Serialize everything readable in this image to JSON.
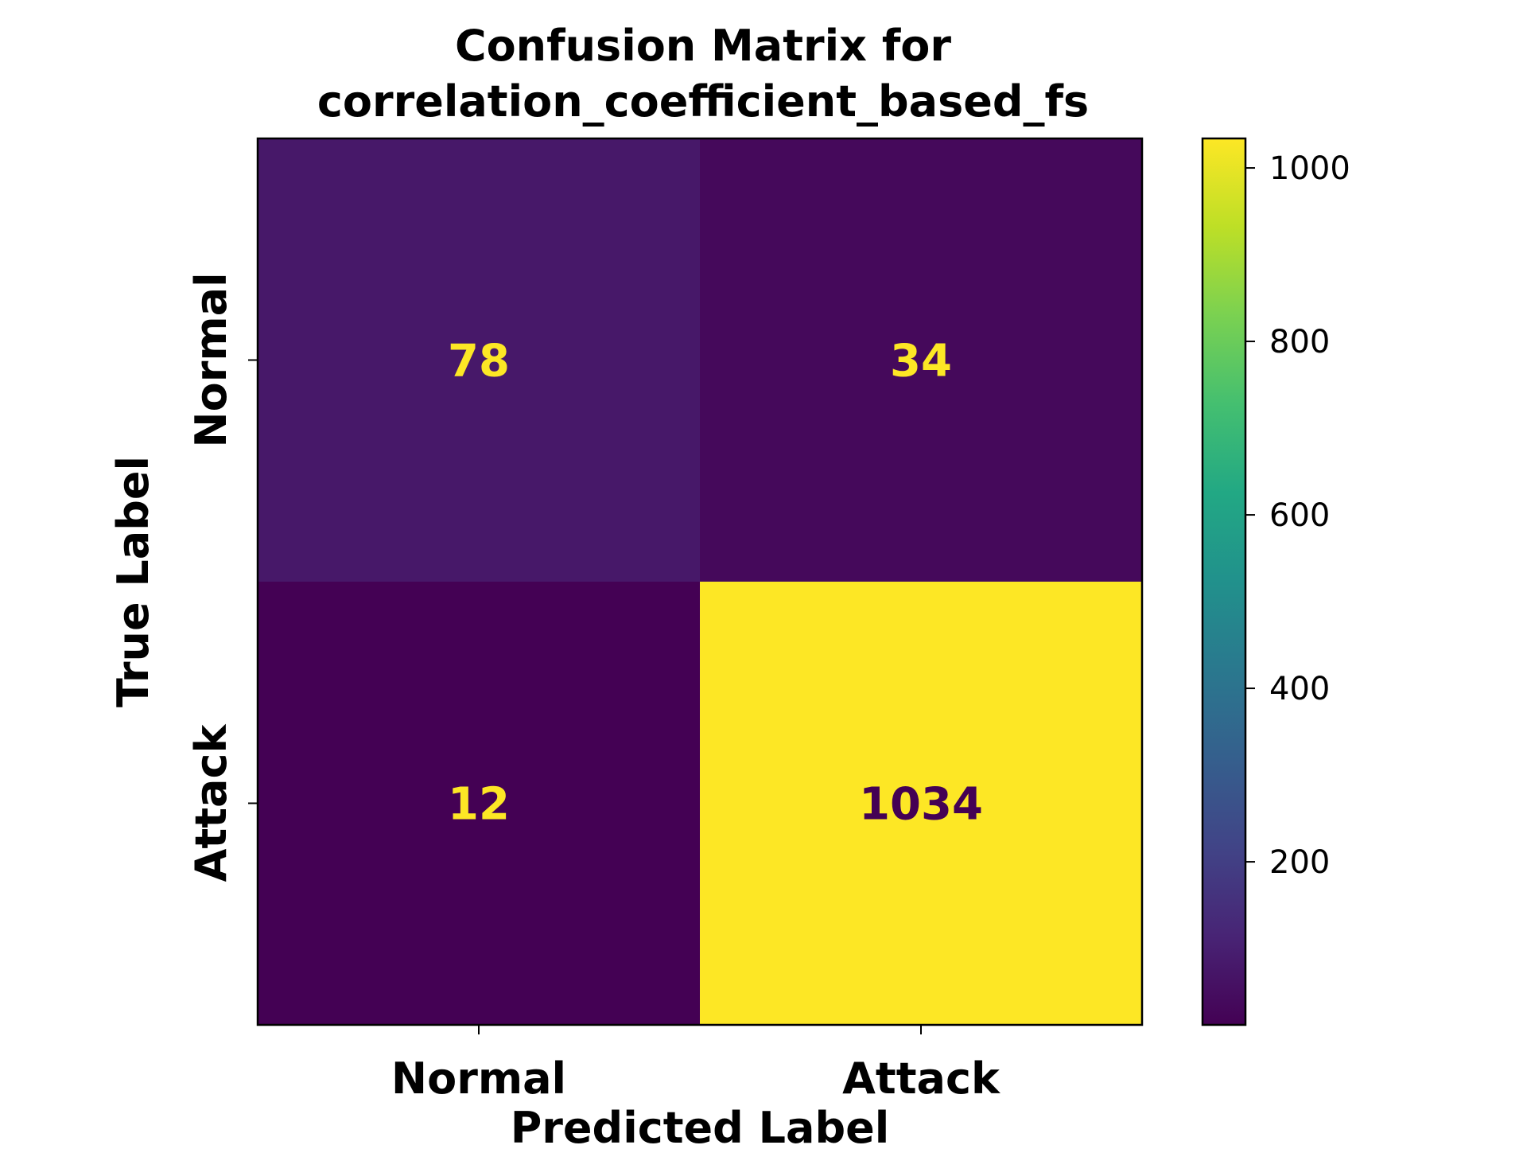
{
  "chart_data": {
    "type": "heatmap",
    "title_lines": [
      "Confusion Matrix for",
      "correlation_coefficient_based_fs"
    ],
    "xlabel": "Predicted Label",
    "ylabel": "True Label",
    "x_categories": [
      "Normal",
      "Attack"
    ],
    "y_categories": [
      "Normal",
      "Attack"
    ],
    "matrix": [
      [
        78,
        34
      ],
      [
        12,
        1034
      ]
    ],
    "colormap": "viridis",
    "colorbar": {
      "min": 12,
      "max": 1034,
      "ticks": [
        200,
        400,
        600,
        800,
        1000
      ]
    },
    "colors": {
      "dark_text": "#440154",
      "light_text": "#fde725"
    }
  }
}
